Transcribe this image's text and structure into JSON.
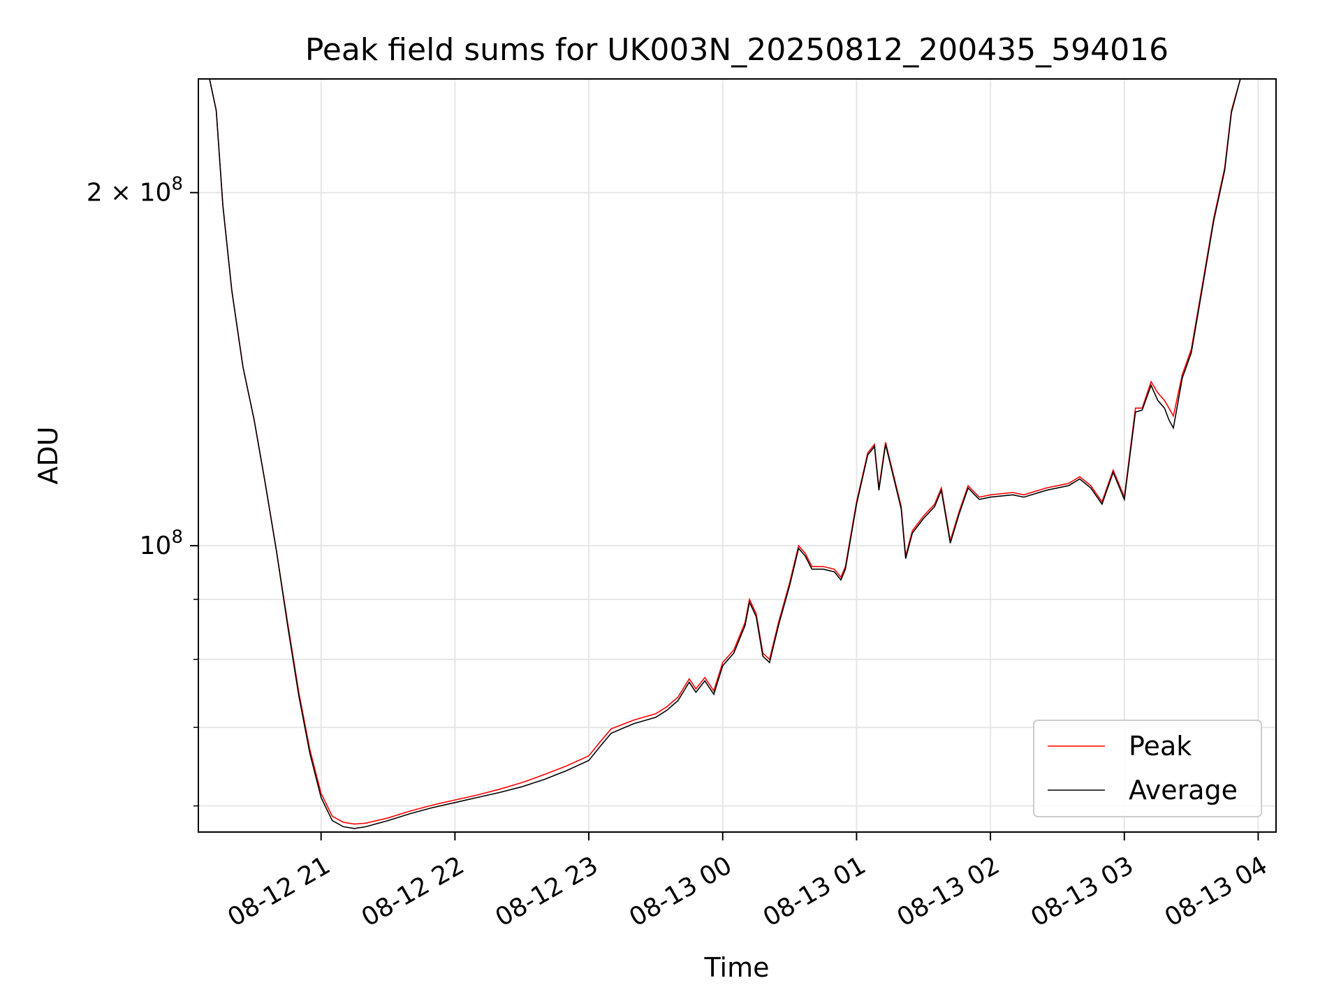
{
  "chart_data": {
    "type": "line",
    "title": "Peak field sums for UK003N_20250812_200435_594016",
    "xlabel": "Time",
    "ylabel": "ADU",
    "y_scale": "log",
    "ylim": [
      57000000,
      250000000
    ],
    "xlim": [
      "2025-08-12 20:05",
      "2025-08-13 04:08"
    ],
    "grid": true,
    "legend_position": "lower-right",
    "x_ticks": [
      {
        "value": "2025-08-12 21:00",
        "label": "08-12 21"
      },
      {
        "value": "2025-08-12 22:00",
        "label": "08-12 22"
      },
      {
        "value": "2025-08-12 23:00",
        "label": "08-12 23"
      },
      {
        "value": "2025-08-13 00:00",
        "label": "08-13 00"
      },
      {
        "value": "2025-08-13 01:00",
        "label": "08-13 01"
      },
      {
        "value": "2025-08-13 02:00",
        "label": "08-13 02"
      },
      {
        "value": "2025-08-13 03:00",
        "label": "08-13 03"
      },
      {
        "value": "2025-08-13 04:00",
        "label": "08-13 04"
      }
    ],
    "y_ticks": [
      {
        "value": 100000000,
        "base": "10",
        "exp": "8",
        "coef": ""
      },
      {
        "value": 200000000,
        "base": "10",
        "exp": "8",
        "coef": "2 × "
      }
    ],
    "y_minor_ticks": [
      60000000,
      70000000,
      80000000,
      90000000
    ],
    "series": [
      {
        "name": "Peak",
        "color": "#ff0000",
        "points": [
          [
            "2025-08-12 20:10",
            250000000
          ],
          [
            "2025-08-12 20:13",
            235000000
          ],
          [
            "2025-08-12 20:16",
            195000000
          ],
          [
            "2025-08-12 20:20",
            165000000
          ],
          [
            "2025-08-12 20:25",
            142000000
          ],
          [
            "2025-08-12 20:30",
            128000000
          ],
          [
            "2025-08-12 20:35",
            113000000
          ],
          [
            "2025-08-12 20:40",
            99000000
          ],
          [
            "2025-08-12 20:45",
            86000000
          ],
          [
            "2025-08-12 20:50",
            75000000
          ],
          [
            "2025-08-12 20:55",
            67000000
          ],
          [
            "2025-08-12 21:00",
            61500000
          ],
          [
            "2025-08-12 21:05",
            58800000
          ],
          [
            "2025-08-12 21:10",
            58100000
          ],
          [
            "2025-08-12 21:15",
            57900000
          ],
          [
            "2025-08-12 21:20",
            58000000
          ],
          [
            "2025-08-12 21:30",
            58600000
          ],
          [
            "2025-08-12 21:40",
            59400000
          ],
          [
            "2025-08-12 21:50",
            60100000
          ],
          [
            "2025-08-12 22:00",
            60700000
          ],
          [
            "2025-08-12 22:10",
            61300000
          ],
          [
            "2025-08-12 22:20",
            62000000
          ],
          [
            "2025-08-12 22:30",
            62800000
          ],
          [
            "2025-08-12 22:40",
            63800000
          ],
          [
            "2025-08-12 22:50",
            64900000
          ],
          [
            "2025-08-12 23:00",
            66200000
          ],
          [
            "2025-08-12 23:05",
            68000000
          ],
          [
            "2025-08-12 23:10",
            69800000
          ],
          [
            "2025-08-12 23:20",
            71000000
          ],
          [
            "2025-08-12 23:30",
            71900000
          ],
          [
            "2025-08-12 23:35",
            72900000
          ],
          [
            "2025-08-12 23:40",
            74300000
          ],
          [
            "2025-08-12 23:45",
            77000000
          ],
          [
            "2025-08-12 23:48",
            75500000
          ],
          [
            "2025-08-12 23:52",
            77200000
          ],
          [
            "2025-08-12 23:56",
            75200000
          ],
          [
            "2025-08-13 00:00",
            79500000
          ],
          [
            "2025-08-13 00:05",
            81500000
          ],
          [
            "2025-08-13 00:10",
            86000000
          ],
          [
            "2025-08-13 00:12",
            90000000
          ],
          [
            "2025-08-13 00:15",
            87500000
          ],
          [
            "2025-08-13 00:18",
            81000000
          ],
          [
            "2025-08-13 00:21",
            80000000
          ],
          [
            "2025-08-13 00:25",
            86000000
          ],
          [
            "2025-08-13 00:30",
            93000000
          ],
          [
            "2025-08-13 00:34",
            100000000
          ],
          [
            "2025-08-13 00:37",
            98500000
          ],
          [
            "2025-08-13 00:40",
            96000000
          ],
          [
            "2025-08-13 00:45",
            96000000
          ],
          [
            "2025-08-13 00:50",
            95500000
          ],
          [
            "2025-08-13 00:53",
            94000000
          ],
          [
            "2025-08-13 00:55",
            96000000
          ],
          [
            "2025-08-13 01:00",
            109000000
          ],
          [
            "2025-08-13 01:05",
            120000000
          ],
          [
            "2025-08-13 01:08",
            122000000
          ],
          [
            "2025-08-13 01:10",
            112000000
          ],
          [
            "2025-08-13 01:13",
            122500000
          ],
          [
            "2025-08-13 01:17",
            114000000
          ],
          [
            "2025-08-13 01:20",
            108000000
          ],
          [
            "2025-08-13 01:22",
            98000000
          ],
          [
            "2025-08-13 01:25",
            103000000
          ],
          [
            "2025-08-13 01:30",
            106000000
          ],
          [
            "2025-08-13 01:35",
            108500000
          ],
          [
            "2025-08-13 01:38",
            112000000
          ],
          [
            "2025-08-13 01:42",
            101000000
          ],
          [
            "2025-08-13 01:46",
            107000000
          ],
          [
            "2025-08-13 01:50",
            112500000
          ],
          [
            "2025-08-13 01:55",
            110000000
          ],
          [
            "2025-08-13 02:00",
            110500000
          ],
          [
            "2025-08-13 02:10",
            111000000
          ],
          [
            "2025-08-13 02:15",
            110500000
          ],
          [
            "2025-08-13 02:25",
            112000000
          ],
          [
            "2025-08-13 02:35",
            113000000
          ],
          [
            "2025-08-13 02:40",
            114500000
          ],
          [
            "2025-08-13 02:45",
            112500000
          ],
          [
            "2025-08-13 02:50",
            109000000
          ],
          [
            "2025-08-13 02:55",
            116000000
          ],
          [
            "2025-08-13 03:00",
            110000000
          ],
          [
            "2025-08-13 03:05",
            131000000
          ],
          [
            "2025-08-13 03:08",
            131000000
          ],
          [
            "2025-08-13 03:12",
            138000000
          ],
          [
            "2025-08-13 03:15",
            135000000
          ],
          [
            "2025-08-13 03:18",
            133000000
          ],
          [
            "2025-08-13 03:20",
            131000000
          ],
          [
            "2025-08-13 03:22",
            129000000
          ],
          [
            "2025-08-13 03:26",
            140000000
          ],
          [
            "2025-08-13 03:30",
            147000000
          ],
          [
            "2025-08-13 03:35",
            167000000
          ],
          [
            "2025-08-13 03:40",
            190000000
          ],
          [
            "2025-08-13 03:45",
            210000000
          ],
          [
            "2025-08-13 03:48",
            235000000
          ],
          [
            "2025-08-13 03:52",
            250000000
          ],
          [
            "2025-08-13 04:08",
            250000000
          ]
        ]
      },
      {
        "name": "Average",
        "color": "#000000",
        "points": [
          [
            "2025-08-12 20:10",
            250000000
          ],
          [
            "2025-08-12 20:13",
            235000000
          ],
          [
            "2025-08-12 20:16",
            195000000
          ],
          [
            "2025-08-12 20:20",
            165000000
          ],
          [
            "2025-08-12 20:25",
            142000000
          ],
          [
            "2025-08-12 20:30",
            128000000
          ],
          [
            "2025-08-12 20:35",
            113000000
          ],
          [
            "2025-08-12 20:40",
            99000000
          ],
          [
            "2025-08-12 20:45",
            85500000
          ],
          [
            "2025-08-12 20:50",
            74500000
          ],
          [
            "2025-08-12 20:55",
            66500000
          ],
          [
            "2025-08-12 21:00",
            61000000
          ],
          [
            "2025-08-12 21:05",
            58300000
          ],
          [
            "2025-08-12 21:10",
            57600000
          ],
          [
            "2025-08-12 21:15",
            57400000
          ],
          [
            "2025-08-12 21:20",
            57600000
          ],
          [
            "2025-08-12 21:30",
            58300000
          ],
          [
            "2025-08-12 21:40",
            59100000
          ],
          [
            "2025-08-12 21:50",
            59800000
          ],
          [
            "2025-08-12 22:00",
            60400000
          ],
          [
            "2025-08-12 22:10",
            61000000
          ],
          [
            "2025-08-12 22:20",
            61600000
          ],
          [
            "2025-08-12 22:30",
            62300000
          ],
          [
            "2025-08-12 22:40",
            63200000
          ],
          [
            "2025-08-12 22:50",
            64300000
          ],
          [
            "2025-08-12 23:00",
            65600000
          ],
          [
            "2025-08-12 23:05",
            67400000
          ],
          [
            "2025-08-12 23:10",
            69200000
          ],
          [
            "2025-08-12 23:20",
            70500000
          ],
          [
            "2025-08-12 23:30",
            71400000
          ],
          [
            "2025-08-12 23:35",
            72400000
          ],
          [
            "2025-08-12 23:40",
            73800000
          ],
          [
            "2025-08-12 23:45",
            76500000
          ],
          [
            "2025-08-12 23:48",
            75000000
          ],
          [
            "2025-08-12 23:52",
            76700000
          ],
          [
            "2025-08-12 23:56",
            74700000
          ],
          [
            "2025-08-13 00:00",
            79000000
          ],
          [
            "2025-08-13 00:05",
            81000000
          ],
          [
            "2025-08-13 00:10",
            85500000
          ],
          [
            "2025-08-13 00:12",
            89500000
          ],
          [
            "2025-08-13 00:15",
            87000000
          ],
          [
            "2025-08-13 00:18",
            80500000
          ],
          [
            "2025-08-13 00:21",
            79500000
          ],
          [
            "2025-08-13 00:25",
            85500000
          ],
          [
            "2025-08-13 00:30",
            92500000
          ],
          [
            "2025-08-13 00:34",
            99500000
          ],
          [
            "2025-08-13 00:37",
            98000000
          ],
          [
            "2025-08-13 00:40",
            95500000
          ],
          [
            "2025-08-13 00:45",
            95500000
          ],
          [
            "2025-08-13 00:50",
            95000000
          ],
          [
            "2025-08-13 00:53",
            93500000
          ],
          [
            "2025-08-13 00:55",
            95500000
          ],
          [
            "2025-08-13 01:00",
            108500000
          ],
          [
            "2025-08-13 01:05",
            119500000
          ],
          [
            "2025-08-13 01:08",
            121500000
          ],
          [
            "2025-08-13 01:10",
            111500000
          ],
          [
            "2025-08-13 01:13",
            122000000
          ],
          [
            "2025-08-13 01:17",
            113500000
          ],
          [
            "2025-08-13 01:20",
            107500000
          ],
          [
            "2025-08-13 01:22",
            97500000
          ],
          [
            "2025-08-13 01:25",
            102500000
          ],
          [
            "2025-08-13 01:30",
            105500000
          ],
          [
            "2025-08-13 01:35",
            108000000
          ],
          [
            "2025-08-13 01:38",
            111500000
          ],
          [
            "2025-08-13 01:42",
            100500000
          ],
          [
            "2025-08-13 01:46",
            106500000
          ],
          [
            "2025-08-13 01:50",
            112000000
          ],
          [
            "2025-08-13 01:55",
            109500000
          ],
          [
            "2025-08-13 02:00",
            110000000
          ],
          [
            "2025-08-13 02:10",
            110500000
          ],
          [
            "2025-08-13 02:15",
            110000000
          ],
          [
            "2025-08-13 02:25",
            111500000
          ],
          [
            "2025-08-13 02:35",
            112500000
          ],
          [
            "2025-08-13 02:40",
            114000000
          ],
          [
            "2025-08-13 02:45",
            112000000
          ],
          [
            "2025-08-13 02:50",
            108500000
          ],
          [
            "2025-08-13 02:55",
            115500000
          ],
          [
            "2025-08-13 03:00",
            109500000
          ],
          [
            "2025-08-13 03:05",
            130000000
          ],
          [
            "2025-08-13 03:08",
            130500000
          ],
          [
            "2025-08-13 03:12",
            137000000
          ],
          [
            "2025-08-13 03:15",
            133000000
          ],
          [
            "2025-08-13 03:18",
            131000000
          ],
          [
            "2025-08-13 03:20",
            128000000
          ],
          [
            "2025-08-13 03:22",
            126000000
          ],
          [
            "2025-08-13 03:26",
            139000000
          ],
          [
            "2025-08-13 03:30",
            146000000
          ],
          [
            "2025-08-13 03:35",
            166000000
          ],
          [
            "2025-08-13 03:40",
            189000000
          ],
          [
            "2025-08-13 03:45",
            209000000
          ],
          [
            "2025-08-13 03:48",
            234000000
          ],
          [
            "2025-08-13 03:52",
            250000000
          ],
          [
            "2025-08-13 04:08",
            250000000
          ]
        ]
      }
    ]
  }
}
